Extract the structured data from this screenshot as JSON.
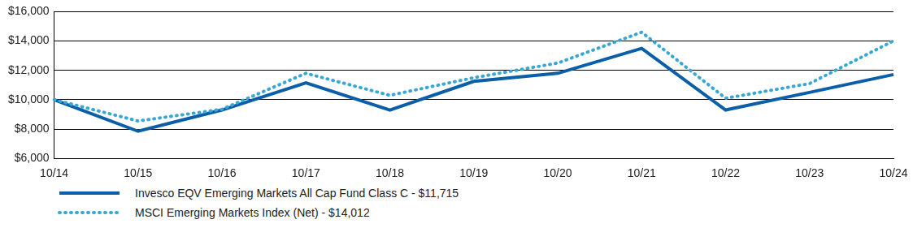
{
  "chart_data": {
    "type": "line",
    "categories": [
      "10/14",
      "10/15",
      "10/16",
      "10/17",
      "10/18",
      "10/19",
      "10/20",
      "10/21",
      "10/22",
      "10/23",
      "10/24"
    ],
    "series": [
      {
        "name": "Invesco EQV Emerging Markets All Cap Fund Class C - $11,715",
        "color": "#0b5ea8",
        "line_style": "solid",
        "values": [
          10000,
          7850,
          9300,
          11150,
          9300,
          11250,
          11800,
          13500,
          9300,
          10500,
          11715
        ]
      },
      {
        "name": "MSCI Emerging Markets Index (Net) - $14,012",
        "color": "#3aa6d6",
        "line_style": "dotted",
        "values": [
          10000,
          8550,
          9350,
          11800,
          10300,
          11500,
          12500,
          14600,
          10100,
          11100,
          14012
        ]
      }
    ],
    "ylim": [
      6000,
      16000
    ],
    "yticks": [
      {
        "value": 6000,
        "label": "$6,000"
      },
      {
        "value": 8000,
        "label": "$8,000"
      },
      {
        "value": 10000,
        "label": "$10,000"
      },
      {
        "value": 12000,
        "label": "$12,000"
      },
      {
        "value": 14000,
        "label": "$14,000"
      },
      {
        "value": 16000,
        "label": "$16,000"
      }
    ],
    "grid": true,
    "legend": "bottom-left"
  }
}
